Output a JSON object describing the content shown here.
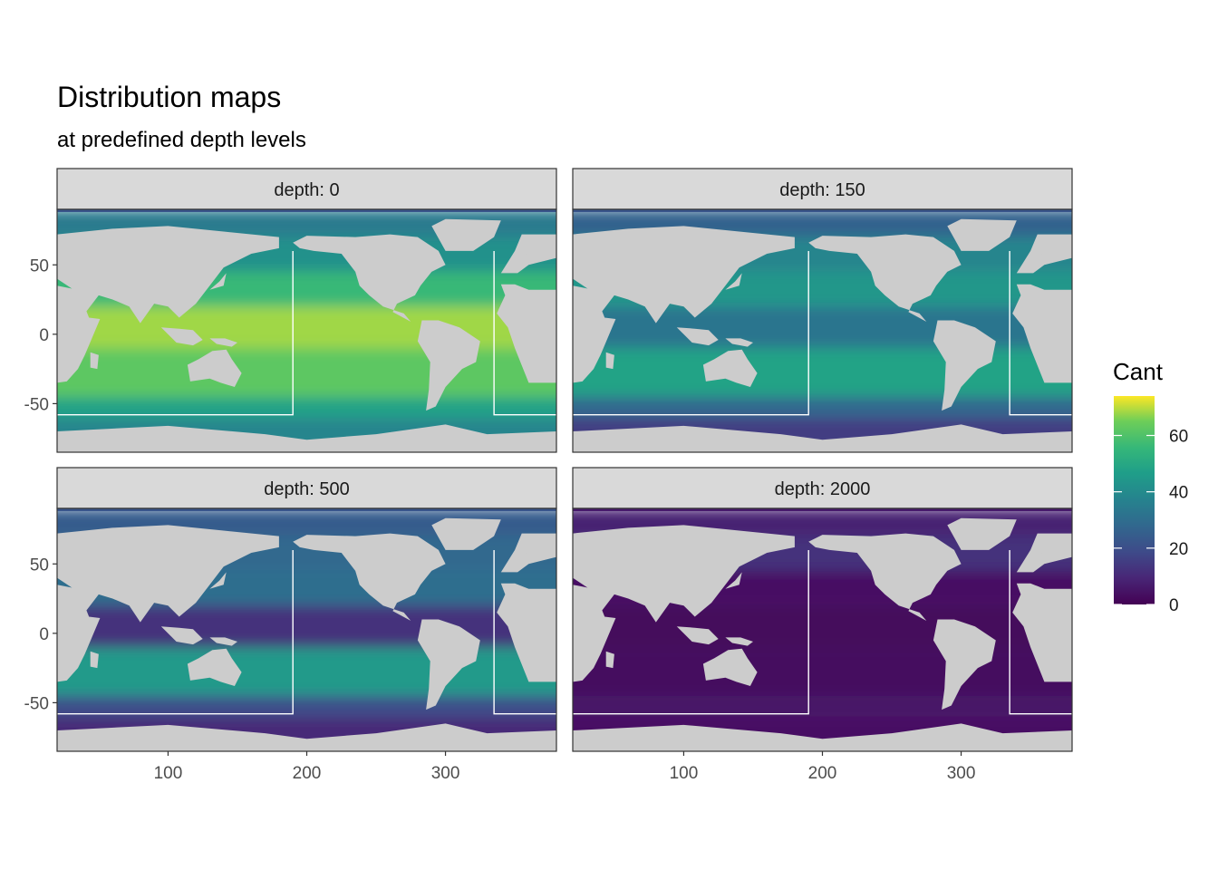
{
  "chart_data": {
    "type": "heatmap",
    "title": "Distribution maps",
    "subtitle": "at predefined depth levels",
    "facet_label_prefix": "depth: ",
    "facets": [
      {
        "depth": "0",
        "label": "depth: 0"
      },
      {
        "depth": "150",
        "label": "depth: 150"
      },
      {
        "depth": "500",
        "label": "depth: 500"
      },
      {
        "depth": "2000",
        "label": "depth: 2000"
      }
    ],
    "x_ticks": [
      100,
      200,
      300
    ],
    "y_ticks": [
      50,
      0,
      -50
    ],
    "xlim": [
      20,
      380
    ],
    "ylim": [
      -85,
      90
    ],
    "region_box": {
      "west": 190,
      "east": 335,
      "south": -58,
      "north": 60
    },
    "legend": {
      "title": "Cant",
      "ticks": [
        0,
        20,
        40,
        60
      ],
      "range": [
        0,
        74
      ],
      "colormap": "viridis"
    },
    "approx_mean_by_depth": {
      "0": 60,
      "150": 40,
      "500": 25,
      "2000": 5
    },
    "land_color": "#cccccc",
    "panel_border": "#333333",
    "strip_fill": "#d9d9d9"
  }
}
